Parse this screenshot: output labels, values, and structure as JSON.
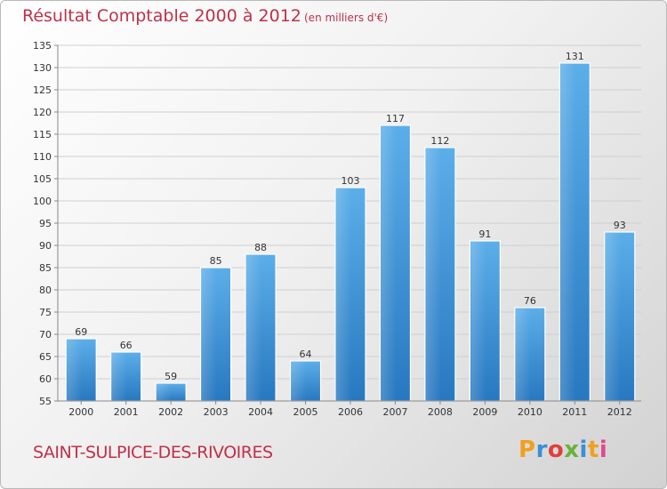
{
  "header": {
    "title": "Résultat Comptable 2000 à 2012",
    "subtitle": "(en milliers d'€)"
  },
  "footer": {
    "commune": "SAINT-SULPICE-DES-RIVOIRES",
    "logo_text": "Proxiti"
  },
  "colors": {
    "title": "#c0304a",
    "bar_light": "#5aaae6",
    "bar_dark": "#2a7bc1",
    "grid": "#cccccc",
    "logo_letters": [
      "#f0a020",
      "#3a8fd8",
      "#e0403a",
      "#6ab23a",
      "#3a8fd8",
      "#f0a020",
      "#e04a8a"
    ]
  },
  "chart_data": {
    "type": "bar",
    "title": "Résultat Comptable 2000 à 2012",
    "subtitle": "(en milliers d'€)",
    "xlabel": "",
    "ylabel": "",
    "categories": [
      "2000",
      "2001",
      "2002",
      "2003",
      "2004",
      "2005",
      "2006",
      "2007",
      "2008",
      "2009",
      "2010",
      "2011",
      "2012"
    ],
    "values": [
      69,
      66,
      59,
      85,
      88,
      64,
      103,
      117,
      112,
      91,
      76,
      131,
      93
    ],
    "ylim": [
      55,
      135
    ],
    "yticks": [
      55,
      60,
      65,
      70,
      75,
      80,
      85,
      90,
      95,
      100,
      105,
      110,
      115,
      120,
      125,
      130,
      135
    ],
    "grid": true,
    "data_labels": true,
    "legend": "none"
  }
}
